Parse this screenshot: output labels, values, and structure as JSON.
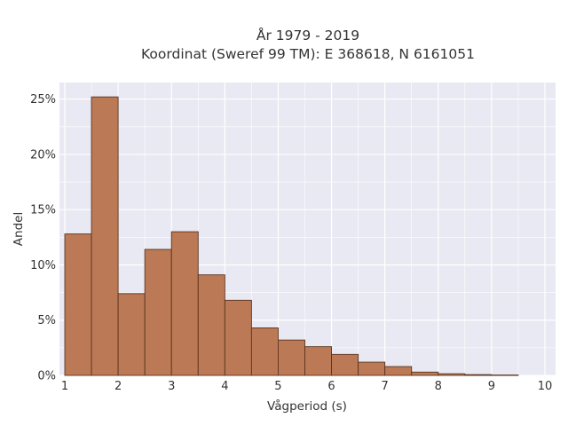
{
  "chart_data": {
    "type": "bar",
    "title": "År 1979 - 2019",
    "subtitle": "Koordinat (Sweref 99 TM): E 368618, N 6161051",
    "xlabel": "Vågperiod (s)",
    "ylabel": "Andel",
    "bin_edges": [
      1,
      1.5,
      2,
      2.5,
      3,
      3.5,
      4,
      4.5,
      5,
      5.5,
      6,
      6.5,
      7,
      7.5,
      8,
      8.5,
      9,
      9.5
    ],
    "values": [
      12.8,
      25.2,
      7.4,
      11.4,
      13.0,
      9.1,
      6.8,
      4.3,
      3.2,
      2.6,
      1.9,
      1.2,
      0.8,
      0.3,
      0.15,
      0.07,
      0.04
    ],
    "xlim": [
      0.9,
      10.2
    ],
    "ylim": [
      0,
      26.5
    ],
    "x_ticks": [
      1,
      2,
      3,
      4,
      5,
      6,
      7,
      8,
      9,
      10
    ],
    "x_tick_labels": [
      "1",
      "2",
      "3",
      "4",
      "5",
      "6",
      "7",
      "8",
      "9",
      "10"
    ],
    "y_ticks": [
      0,
      5,
      10,
      15,
      20,
      25
    ],
    "y_tick_labels": [
      "0%",
      "5%",
      "10%",
      "15%",
      "20%",
      "25%"
    ],
    "grid": true,
    "legend": "none",
    "colors": {
      "bar_fill": "#bc7955",
      "bar_stroke": "#5a3420",
      "plot_bg": "#e8e9f2",
      "grid": "#ffffff"
    }
  }
}
